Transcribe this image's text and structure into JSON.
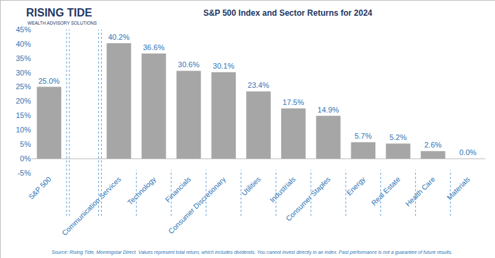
{
  "chart_data": {
    "type": "bar",
    "title": "S&P 500 Index and Sector Returns for 2024",
    "logo": {
      "name": "RISING TIDE",
      "tagline": "WEALTH ADVISORY SOLUTIONS"
    },
    "source": "Source: Rising Tide, Morningstar Direct. Values represent total return, which includes dividends. You cannot invest directly in an index. Past performance is not a guarantee of future results.",
    "categories": [
      "S&P 500",
      null,
      "Communication Services",
      "Technology",
      "Financials",
      "Consumer Discretionary",
      "Utilities",
      "Industrials",
      "Consumer Staples",
      "Energy",
      "Real Estate",
      "Health Care",
      "Materials"
    ],
    "values": [
      25.0,
      null,
      40.2,
      36.6,
      30.6,
      30.1,
      23.4,
      17.5,
      14.9,
      5.7,
      5.2,
      2.6,
      0.0
    ],
    "value_labels": [
      "25.0%",
      null,
      "40.2%",
      "36.6%",
      "30.6%",
      "30.1%",
      "23.4%",
      "17.5%",
      "14.9%",
      "5.7%",
      "5.2%",
      "2.6%",
      "0.0%"
    ],
    "color": "#a6a6a6",
    "ylim": [
      -5,
      45
    ],
    "yticks": [
      {
        "value": -5,
        "label": "-5%"
      },
      {
        "value": 0,
        "label": "0%"
      },
      {
        "value": 5,
        "label": "5%"
      },
      {
        "value": 10,
        "label": "10%"
      },
      {
        "value": 15,
        "label": "15%"
      },
      {
        "value": 20,
        "label": "20%"
      },
      {
        "value": 25,
        "label": "25%"
      },
      {
        "value": 30,
        "label": "30%"
      },
      {
        "value": 35,
        "label": "35%"
      },
      {
        "value": 40,
        "label": "40%"
      },
      {
        "value": 45,
        "label": "45%"
      }
    ],
    "grid": false,
    "data_labels": true
  }
}
